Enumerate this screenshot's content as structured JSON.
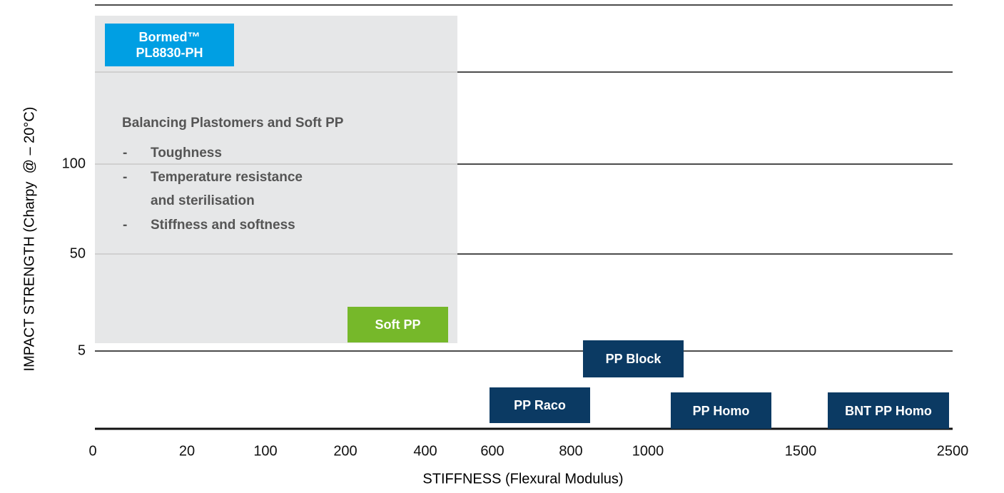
{
  "y_axis": {
    "label": "IMPACT STRENGTH (Charpy  @ – 20°C)",
    "ticks": [
      100,
      50,
      5
    ]
  },
  "x_axis": {
    "label": "STIFFNESS (Flexural Modulus)",
    "ticks": [
      0,
      20,
      100,
      200,
      400,
      600,
      800,
      1000,
      1500,
      2500
    ]
  },
  "highlight": {
    "product": [
      "Bormed™",
      "PL8830-PH"
    ],
    "title": "Balancing Plastomers and Soft PP",
    "items": [
      [
        "Toughness"
      ],
      [
        "Temperature resistance",
        "and sterilisation"
      ],
      [
        "Stiffness and softness"
      ]
    ]
  },
  "products": [
    {
      "label": "Soft PP"
    },
    {
      "label": "PP Block"
    },
    {
      "label": "PP Raco"
    },
    {
      "label": "PP Homo"
    },
    {
      "label": "BNT PP Homo"
    }
  ]
}
